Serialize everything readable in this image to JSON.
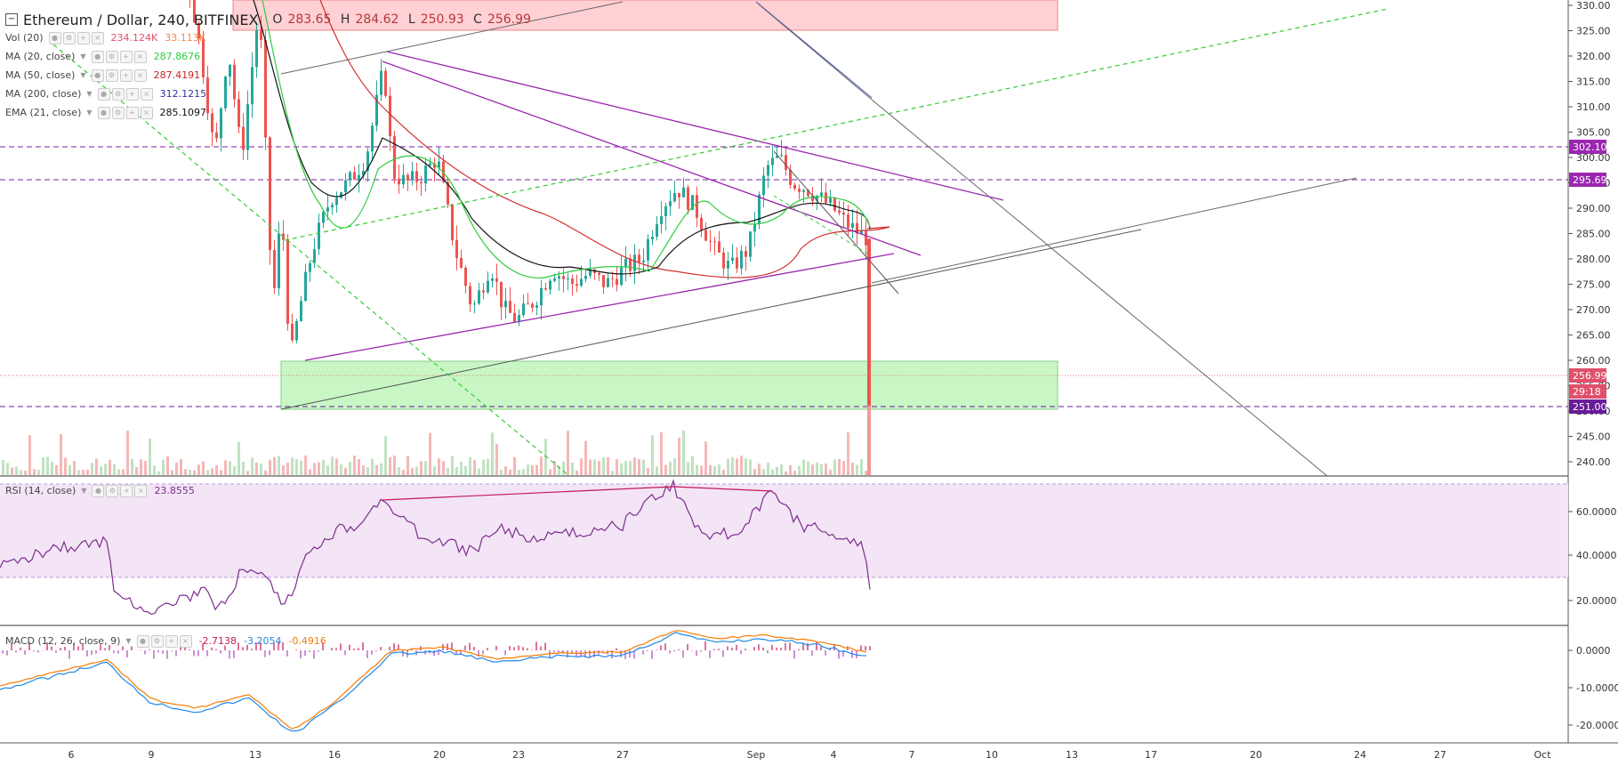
{
  "header": {
    "symbol": "Ethereum / Dollar, 240, BITFINEX",
    "ohlc": [
      {
        "k": "O",
        "v": "283.65"
      },
      {
        "k": "H",
        "v": "284.62"
      },
      {
        "k": "L",
        "v": "250.93"
      },
      {
        "k": "C",
        "v": "256.99"
      }
    ]
  },
  "indicators": {
    "vol": {
      "label": "Vol (20)",
      "v1": "234.124K",
      "v2": "33.113K",
      "c1": "#e0506a",
      "c2": "#f08a4b"
    },
    "ma20": {
      "label": "MA (20, close)",
      "v": "287.8676",
      "color": "#33cc33"
    },
    "ma50": {
      "label": "MA (50, close)",
      "v": "287.4191",
      "color": "#cc2222"
    },
    "ma200": {
      "label": "MA (200, close)",
      "v": "312.1215",
      "color": "#333399"
    },
    "ema21": {
      "label": "EMA (21, close)",
      "v": "285.1097",
      "color": "#111111"
    },
    "rsi": {
      "label": "RSI (14, close)",
      "v": "23.8555",
      "color": "#7b2d8e"
    },
    "macd": {
      "label": "MACD (12, 26, close, 9)",
      "v1": "-2.7138",
      "v2": "-3.2054",
      "v3": "-0.4916",
      "c1": "#c2185b",
      "c2": "#1e88e5",
      "c3": "#f57c00"
    }
  },
  "price_axis": {
    "ticks": [
      "330.00",
      "325.00",
      "320.00",
      "315.00",
      "310.00",
      "305.00",
      "300.00",
      "295.00",
      "290.00",
      "285.00",
      "280.00",
      "275.00",
      "270.00",
      "265.00",
      "260.00",
      "255.00",
      "250.00",
      "245.00",
      "240.00"
    ],
    "badges": [
      {
        "text": "302.10",
        "color": "#9c27b0"
      },
      {
        "text": "295.69",
        "color": "#9c27b0"
      },
      {
        "text": "256.99",
        "color": "#e0506a"
      },
      {
        "text": "29:18",
        "color": "#e0506a"
      },
      {
        "text": "251.00",
        "color": "#6a1b9a"
      }
    ]
  },
  "rsi_axis": {
    "ticks": [
      "60.0000",
      "40.0000",
      "20.0000"
    ]
  },
  "macd_axis": {
    "ticks": [
      "0.0000",
      "-10.0000",
      "-20.0000"
    ]
  },
  "time_axis": {
    "labels": [
      "6",
      "9",
      "13",
      "16",
      "20",
      "23",
      "27",
      "Sep",
      "4",
      "7",
      "10",
      "13",
      "17",
      "20",
      "24",
      "27",
      "Oct"
    ]
  },
  "colors": {
    "bull": "#26a69a",
    "bear": "#ef5350",
    "resistance_zone": "#ffcdd2",
    "support_zone": "#c8f7c5",
    "trend_purple": "#9c27b0",
    "trend_gray": "#555555",
    "trend_green_dashed": "#33cc33"
  }
}
